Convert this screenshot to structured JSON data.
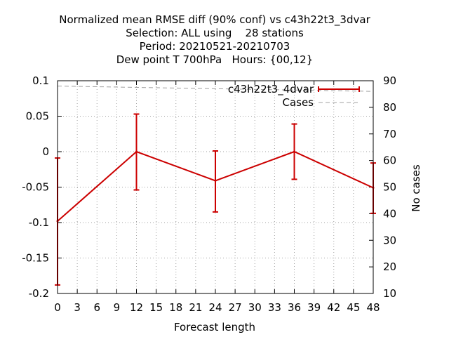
{
  "chart_data": {
    "type": "line",
    "title_lines": [
      "Normalized mean RMSE diff (90% conf) vs c43h22t3_3dvar",
      "Selection: ALL using    28 stations",
      "Period: 20210521-20210703",
      "Dew point T 700hPa   Hours: {00,12}"
    ],
    "xlabel": "Forecast length",
    "ylabel": "",
    "y2label": "No cases",
    "xlim": [
      0,
      48
    ],
    "ylim": [
      -0.2,
      0.1
    ],
    "y2lim": [
      10,
      90
    ],
    "xticks": [
      "0",
      "3",
      "6",
      "9",
      "12",
      "15",
      "18",
      "21",
      "24",
      "27",
      "30",
      "33",
      "36",
      "39",
      "42",
      "45",
      "48"
    ],
    "yticks": [
      "0.1",
      "0.05",
      "0",
      "-0.05",
      "-0.1",
      "-0.15",
      "-0.2"
    ],
    "y2ticks": [
      "90",
      "80",
      "70",
      "60",
      "50",
      "40",
      "30",
      "20",
      "10"
    ],
    "grid": true,
    "legend_position": "top-right",
    "series": [
      {
        "name": "c43h22t3_4dvar",
        "color": "#cc0000",
        "axis": "y",
        "x": [
          0,
          12,
          24,
          36,
          48
        ],
        "values": [
          -0.098,
          0.0,
          -0.041,
          0.0,
          -0.051
        ],
        "err_low": [
          -0.188,
          -0.054,
          -0.085,
          -0.039,
          -0.087
        ],
        "err_high": [
          -0.009,
          0.053,
          0.001,
          0.039,
          -0.016
        ]
      },
      {
        "name": "Cases",
        "color": "#a0a0a0",
        "axis": "y2",
        "x": [
          0,
          12,
          24,
          36,
          48
        ],
        "values": [
          88,
          87.5,
          87,
          86.5,
          86
        ]
      }
    ]
  }
}
